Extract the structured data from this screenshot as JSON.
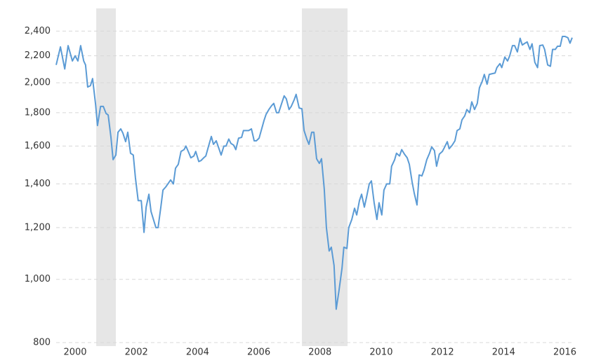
{
  "chart_data": {
    "type": "line",
    "log_y": true,
    "grid": true,
    "color": "#5b9bd5",
    "shade_color": "#e6e6e6",
    "shaded_periods": [
      [
        2000.69,
        2001.33
      ],
      [
        2007.41,
        2008.9
      ]
    ],
    "xlim": [
      1999.38,
      2016.31
    ],
    "ylim": [
      800,
      2600
    ],
    "xticks": [
      2000,
      2002,
      2004,
      2006,
      2008,
      2010,
      2012,
      2014,
      2016
    ],
    "yticks": [
      800,
      {
        "value": 1000,
        "label": "1,000"
      },
      {
        "value": 1200,
        "label": "1,200"
      },
      {
        "value": 1400,
        "label": "1,400"
      },
      {
        "value": 1600,
        "label": "1,600"
      },
      {
        "value": 1800,
        "label": "1,800"
      },
      {
        "value": 2000,
        "label": "2,000"
      },
      {
        "value": 2200,
        "label": "2,200"
      },
      {
        "value": 2400,
        "label": "2,400"
      }
    ],
    "x": [
      1999.38,
      1999.52,
      1999.66,
      1999.77,
      1999.91,
      2000.0,
      2000.09,
      2000.18,
      2000.28,
      2000.34,
      2000.41,
      2000.5,
      2000.57,
      2000.67,
      2000.73,
      2000.83,
      2000.92,
      2001.01,
      2001.08,
      2001.17,
      2001.24,
      2001.33,
      2001.4,
      2001.49,
      2001.56,
      2001.65,
      2001.72,
      2001.81,
      2001.9,
      2001.97,
      2002.06,
      2002.16,
      2002.25,
      2002.32,
      2002.41,
      2002.48,
      2002.57,
      2002.64,
      2002.71,
      2002.8,
      2002.87,
      2002.96,
      2003.03,
      2003.12,
      2003.21,
      2003.28,
      2003.37,
      2003.46,
      2003.56,
      2003.62,
      2003.72,
      2003.78,
      2003.88,
      2003.94,
      2004.04,
      2004.11,
      2004.2,
      2004.27,
      2004.36,
      2004.45,
      2004.52,
      2004.61,
      2004.7,
      2004.77,
      2004.86,
      2004.93,
      2005.02,
      2005.09,
      2005.18,
      2005.25,
      2005.34,
      2005.44,
      2005.5,
      2005.6,
      2005.67,
      2005.76,
      2005.85,
      2005.92,
      2006.01,
      2006.08,
      2006.17,
      2006.24,
      2006.33,
      2006.42,
      2006.49,
      2006.58,
      2006.65,
      2006.74,
      2006.83,
      2006.9,
      2006.99,
      2007.06,
      2007.16,
      2007.22,
      2007.32,
      2007.41,
      2007.48,
      2007.57,
      2007.64,
      2007.73,
      2007.8,
      2007.89,
      2007.98,
      2008.05,
      2008.14,
      2008.21,
      2008.3,
      2008.37,
      2008.46,
      2008.53,
      2008.62,
      2008.72,
      2008.78,
      2008.88,
      2008.94,
      2009.04,
      2009.13,
      2009.2,
      2009.29,
      2009.36,
      2009.45,
      2009.52,
      2009.61,
      2009.68,
      2009.77,
      2009.86,
      2009.93,
      2010.02,
      2010.09,
      2010.18,
      2010.28,
      2010.34,
      2010.44,
      2010.5,
      2010.6,
      2010.67,
      2010.76,
      2010.85,
      2010.92,
      2011.01,
      2011.08,
      2011.17,
      2011.24,
      2011.33,
      2011.4,
      2011.49,
      2011.58,
      2011.65,
      2011.74,
      2011.81,
      2011.9,
      2012.0,
      2012.06,
      2012.16,
      2012.22,
      2012.32,
      2012.41,
      2012.48,
      2012.57,
      2012.64,
      2012.73,
      2012.8,
      2012.89,
      2012.96,
      2013.05,
      2013.14,
      2013.21,
      2013.3,
      2013.37,
      2013.46,
      2013.53,
      2013.62,
      2013.72,
      2013.78,
      2013.88,
      2013.94,
      2014.04,
      2014.13,
      2014.2,
      2014.29,
      2014.36,
      2014.45,
      2014.54,
      2014.61,
      2014.7,
      2014.77,
      2014.86,
      2014.93,
      2015.02,
      2015.11,
      2015.18,
      2015.28,
      2015.34,
      2015.44,
      2015.53,
      2015.6,
      2015.69,
      2015.76,
      2015.85,
      2015.92,
      2016.01,
      2016.1,
      2016.17,
      2016.24
    ],
    "values": [
      2130,
      2270,
      2100,
      2280,
      2160,
      2200,
      2160,
      2280,
      2160,
      2130,
      1970,
      1980,
      2030,
      1850,
      1720,
      1840,
      1840,
      1795,
      1785,
      1650,
      1525,
      1550,
      1680,
      1700,
      1675,
      1625,
      1680,
      1560,
      1550,
      1430,
      1320,
      1320,
      1180,
      1290,
      1350,
      1270,
      1230,
      1200,
      1200,
      1290,
      1370,
      1385,
      1400,
      1420,
      1400,
      1480,
      1500,
      1570,
      1580,
      1600,
      1560,
      1535,
      1545,
      1570,
      1515,
      1520,
      1535,
      1545,
      1600,
      1655,
      1610,
      1630,
      1585,
      1550,
      1600,
      1600,
      1640,
      1615,
      1605,
      1580,
      1645,
      1650,
      1690,
      1690,
      1690,
      1700,
      1630,
      1630,
      1645,
      1690,
      1750,
      1790,
      1820,
      1845,
      1860,
      1800,
      1800,
      1855,
      1910,
      1890,
      1820,
      1840,
      1885,
      1920,
      1830,
      1825,
      1690,
      1640,
      1610,
      1680,
      1680,
      1530,
      1505,
      1530,
      1375,
      1200,
      1105,
      1120,
      1050,
      900,
      960,
      1040,
      1120,
      1115,
      1200,
      1235,
      1285,
      1255,
      1320,
      1350,
      1290,
      1335,
      1400,
      1415,
      1310,
      1235,
      1310,
      1255,
      1370,
      1400,
      1400,
      1490,
      1525,
      1560,
      1545,
      1580,
      1555,
      1535,
      1500,
      1410,
      1355,
      1300,
      1445,
      1440,
      1470,
      1525,
      1560,
      1595,
      1575,
      1490,
      1555,
      1570,
      1590,
      1625,
      1585,
      1605,
      1630,
      1690,
      1700,
      1755,
      1780,
      1820,
      1800,
      1870,
      1820,
      1860,
      1965,
      2010,
      2060,
      1990,
      2060,
      2065,
      2070,
      2110,
      2140,
      2110,
      2190,
      2160,
      2200,
      2280,
      2280,
      2230,
      2340,
      2285,
      2300,
      2310,
      2250,
      2295,
      2150,
      2110,
      2280,
      2285,
      2250,
      2130,
      2120,
      2250,
      2250,
      2275,
      2275,
      2355,
      2355,
      2345,
      2300,
      2345
    ]
  }
}
